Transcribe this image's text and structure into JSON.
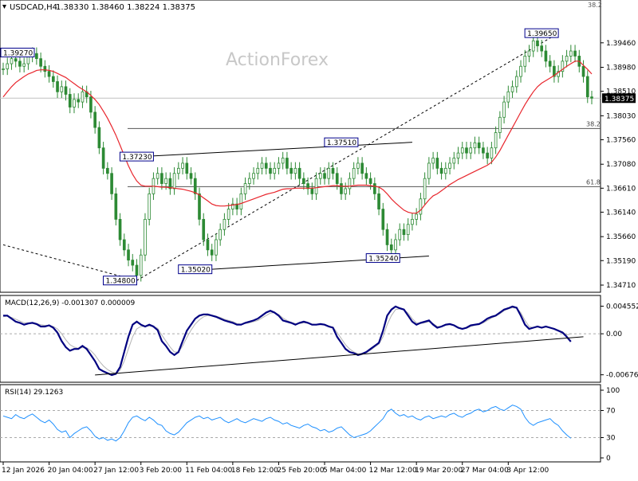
{
  "header": {
    "symbol": "USDCAD,H4",
    "ohlc": "1.38330 1.38460 1.38224 1.38375"
  },
  "watermark": "ActionForex",
  "colors": {
    "candle": "#2d8a34",
    "ma": "#e8262d",
    "macd": "#000080",
    "signal": "#b4b4b4",
    "rsi": "#1e90ff",
    "label_border": "#00008b",
    "level": "#555555",
    "last_price_bg": "#000000"
  },
  "chart_data": [
    {
      "type": "candlestick",
      "title": "USDCAD,H4",
      "yticks": [
        "1.39460",
        "1.38980",
        "1.38510",
        "1.38030",
        "1.37560",
        "1.37080",
        "1.36610",
        "1.36140",
        "1.35660",
        "1.35190",
        "1.34710"
      ],
      "ylim": [
        1.3471,
        1.4005
      ],
      "top_fib_label": "38.2",
      "last_price": "1.38375",
      "key_labels": [
        {
          "id": "label-1.39270",
          "text": "1.39270",
          "x": 7,
          "y": 1.3927
        },
        {
          "id": "label-1.37230",
          "text": "1.37230",
          "x": 36,
          "y": 1.3723
        },
        {
          "id": "label-1.34800",
          "text": "1.34800",
          "x": 32,
          "y": 1.348
        },
        {
          "id": "label-1.35020",
          "text": "1.35020",
          "x": 50,
          "y": 1.3502
        },
        {
          "id": "label-1.37510",
          "text": "1.37510",
          "x": 85,
          "y": 1.3751
        },
        {
          "id": "label-1.35240",
          "text": "1.35240",
          "x": 95,
          "y": 1.3524
        },
        {
          "id": "label-1.39650",
          "text": "1.39650",
          "x": 133,
          "y": 1.3965
        }
      ],
      "fib_levels": [
        {
          "label": "38.2",
          "value": 1.3778
        },
        {
          "label": "61.8",
          "value": 1.3664
        }
      ],
      "trend_lines": [
        {
          "name": "upper-channel",
          "from": [
            33,
            1.3723
          ],
          "to": [
            98,
            1.3751
          ],
          "style": "solid"
        },
        {
          "name": "lower-channel",
          "from": [
            50,
            1.3502
          ],
          "to": [
            102,
            1.3528
          ],
          "style": "solid"
        },
        {
          "name": "dotted-rise",
          "from": [
            32,
            1.348
          ],
          "to": [
            133,
            1.3965
          ],
          "style": "dotted"
        },
        {
          "name": "dotted-fall",
          "from": [
            0,
            1.355
          ],
          "to": [
            32,
            1.348
          ],
          "style": "dotted"
        }
      ],
      "close_series": [
        1.3895,
        1.3905,
        1.3915,
        1.391,
        1.39,
        1.3905,
        1.392,
        1.3925,
        1.3915,
        1.39,
        1.389,
        1.388,
        1.387,
        1.385,
        1.386,
        1.3845,
        1.382,
        1.3835,
        1.383,
        1.385,
        1.384,
        1.381,
        1.378,
        1.374,
        1.37,
        1.369,
        1.365,
        1.36,
        1.356,
        1.354,
        1.352,
        1.351,
        1.349,
        1.353,
        1.36,
        1.365,
        1.368,
        1.369,
        1.367,
        1.368,
        1.366,
        1.369,
        1.37,
        1.371,
        1.369,
        1.368,
        1.365,
        1.36,
        1.356,
        1.354,
        1.353,
        1.356,
        1.358,
        1.36,
        1.362,
        1.363,
        1.362,
        1.365,
        1.367,
        1.368,
        1.369,
        1.37,
        1.371,
        1.37,
        1.369,
        1.37,
        1.371,
        1.372,
        1.37,
        1.369,
        1.37,
        1.368,
        1.367,
        1.366,
        1.365,
        1.368,
        1.369,
        1.368,
        1.37,
        1.369,
        1.367,
        1.365,
        1.366,
        1.368,
        1.37,
        1.371,
        1.369,
        1.368,
        1.367,
        1.365,
        1.362,
        1.358,
        1.355,
        1.354,
        1.356,
        1.358,
        1.357,
        1.359,
        1.36,
        1.361,
        1.364,
        1.368,
        1.371,
        1.372,
        1.37,
        1.369,
        1.37,
        1.371,
        1.372,
        1.373,
        1.374,
        1.373,
        1.374,
        1.375,
        1.374,
        1.373,
        1.372,
        1.374,
        1.377,
        1.38,
        1.383,
        1.385,
        1.386,
        1.388,
        1.39,
        1.392,
        1.393,
        1.395,
        1.394,
        1.393,
        1.391,
        1.39,
        1.388,
        1.389,
        1.391,
        1.392,
        1.393,
        1.392,
        1.39,
        1.388,
        1.384,
        1.38375
      ],
      "ma_series": [
        1.384,
        1.385,
        1.386,
        1.3868,
        1.3874,
        1.388,
        1.3885,
        1.3888,
        1.3892,
        1.3893,
        1.3893,
        1.3892,
        1.389,
        1.3886,
        1.3882,
        1.3878,
        1.3872,
        1.3866,
        1.386,
        1.3855,
        1.385,
        1.3843,
        1.3835,
        1.3825,
        1.3812,
        1.3798,
        1.3782,
        1.3765,
        1.3745,
        1.3725,
        1.3705,
        1.3688,
        1.3675,
        1.3667,
        1.3665,
        1.3665,
        1.3665,
        1.3664,
        1.3663,
        1.3663,
        1.3662,
        1.3661,
        1.366,
        1.3659,
        1.3657,
        1.3655,
        1.3652,
        1.3648,
        1.3642,
        1.3636,
        1.363,
        1.3627,
        1.3626,
        1.3626,
        1.3627,
        1.3628,
        1.3629,
        1.3631,
        1.3634,
        1.3637,
        1.364,
        1.3643,
        1.3646,
        1.3649,
        1.3651,
        1.3653,
        1.3656,
        1.3659,
        1.366,
        1.366,
        1.3661,
        1.3661,
        1.3661,
        1.3661,
        1.3661,
        1.3662,
        1.3663,
        1.3664,
        1.3665,
        1.3666,
        1.3666,
        1.3665,
        1.3665,
        1.3665,
        1.3666,
        1.3667,
        1.3667,
        1.3667,
        1.3666,
        1.3665,
        1.3663,
        1.3658,
        1.365,
        1.364,
        1.3632,
        1.3625,
        1.3618,
        1.3614,
        1.3612,
        1.3612,
        1.3618,
        1.3628,
        1.3638,
        1.3646,
        1.365,
        1.3656,
        1.3662,
        1.3668,
        1.3673,
        1.3678,
        1.3682,
        1.3686,
        1.369,
        1.3694,
        1.3698,
        1.3702,
        1.3706,
        1.3712,
        1.3722,
        1.3735,
        1.375,
        1.3765,
        1.378,
        1.3795,
        1.381,
        1.3825,
        1.3838,
        1.385,
        1.386,
        1.3867,
        1.3872,
        1.3877,
        1.3882,
        1.3888,
        1.3894,
        1.39,
        1.3905,
        1.391,
        1.391,
        1.3902,
        1.3894,
        1.3885
      ]
    },
    {
      "type": "line",
      "title": "MACD(12,26,9) -0.001307 0.000009",
      "yticks": [
        "0.004552",
        "0.00",
        "-0.006764"
      ],
      "ylim": [
        -0.0076,
        0.0054
      ],
      "series": [
        {
          "name": "MACD",
          "values": [
            0.003,
            0.003,
            0.0025,
            0.002,
            0.0018,
            0.0015,
            0.0017,
            0.0018,
            0.0016,
            0.0012,
            0.0012,
            0.0014,
            0.001,
            0.0002,
            -0.0012,
            -0.0022,
            -0.0028,
            -0.0025,
            -0.0025,
            -0.002,
            -0.0025,
            -0.0035,
            -0.0045,
            -0.0058,
            -0.0062,
            -0.0065,
            -0.0068,
            -0.0066,
            -0.0055,
            -0.003,
            -0.0005,
            0.0015,
            0.002,
            0.0015,
            0.0012,
            0.0015,
            0.0012,
            0.0006,
            -0.0012,
            -0.002,
            -0.003,
            -0.0035,
            -0.003,
            -0.0012,
            0.0005,
            0.0015,
            0.0025,
            0.003,
            0.0032,
            0.0032,
            0.003,
            0.0028,
            0.0025,
            0.0022,
            0.002,
            0.0018,
            0.0015,
            0.0015,
            0.0018,
            0.002,
            0.0022,
            0.0025,
            0.003,
            0.0035,
            0.0038,
            0.0035,
            0.003,
            0.0022,
            0.002,
            0.0018,
            0.0015,
            0.0018,
            0.002,
            0.0018,
            0.0015,
            0.0015,
            0.0016,
            0.0015,
            0.0012,
            0.001,
            -0.0005,
            -0.0015,
            -0.0025,
            -0.003,
            -0.0032,
            -0.0035,
            -0.0033,
            -0.003,
            -0.0025,
            -0.002,
            -0.0015,
            0.0005,
            0.003,
            0.004,
            0.0045,
            0.0042,
            0.004,
            0.003,
            0.002,
            0.0015,
            0.0018,
            0.002,
            0.0022,
            0.0015,
            0.001,
            0.0012,
            0.0015,
            0.0016,
            0.0014,
            0.001,
            0.0008,
            0.001,
            0.0014,
            0.0015,
            0.0016,
            0.002,
            0.0025,
            0.0028,
            0.003,
            0.0035,
            0.004,
            0.0042,
            0.0045,
            0.0043,
            0.003,
            0.0015,
            0.0008,
            0.001,
            0.0012,
            0.001,
            0.0012,
            0.001,
            0.0008,
            0.0005,
            0.0002,
            -0.0005,
            -0.0013
          ]
        },
        {
          "name": "Signal",
          "values": [
            0.0028,
            0.0029,
            0.0027,
            0.0024,
            0.0021,
            0.0018,
            0.0018,
            0.0018,
            0.0017,
            0.0015,
            0.0014,
            0.0014,
            0.0012,
            0.0008,
            0.0,
            -0.001,
            -0.0018,
            -0.0022,
            -0.0024,
            -0.0023,
            -0.0023,
            -0.0028,
            -0.0035,
            -0.0045,
            -0.0053,
            -0.0059,
            -0.0063,
            -0.0065,
            -0.006,
            -0.0045,
            -0.0025,
            -0.0005,
            0.0008,
            0.0012,
            0.0012,
            0.0013,
            0.0012,
            0.0009,
            -0.0002,
            -0.0012,
            -0.0022,
            -0.003,
            -0.003,
            -0.002,
            -0.0006,
            0.0006,
            0.0016,
            0.0023,
            0.0028,
            0.003,
            0.003,
            0.0029,
            0.0027,
            0.0024,
            0.0022,
            0.002,
            0.0017,
            0.0016,
            0.0017,
            0.0018,
            0.002,
            0.0022,
            0.0026,
            0.003,
            0.0034,
            0.0035,
            0.0032,
            0.0026,
            0.0022,
            0.0019,
            0.0017,
            0.0017,
            0.0018,
            0.0018,
            0.0016,
            0.0015,
            0.0015,
            0.0015,
            0.0013,
            0.0011,
            0.0002,
            -0.0008,
            -0.0018,
            -0.0025,
            -0.003,
            -0.0033,
            -0.0033,
            -0.0031,
            -0.0027,
            -0.0022,
            -0.0017,
            -0.0005,
            0.0015,
            0.003,
            0.004,
            0.0041,
            0.004,
            0.0034,
            0.0025,
            0.0018,
            0.0017,
            0.0018,
            0.002,
            0.0017,
            0.0012,
            0.0012,
            0.0014,
            0.0015,
            0.0014,
            0.0011,
            0.0009,
            0.0009,
            0.0012,
            0.0014,
            0.0015,
            0.0018,
            0.0022,
            0.0026,
            0.0029,
            0.0033,
            0.0038,
            0.0041,
            0.0043,
            0.0042,
            0.0035,
            0.0022,
            0.0012,
            0.001,
            0.0011,
            0.001,
            0.0011,
            0.001,
            0.0009,
            0.0006,
            0.0003,
            -0.0002,
            0.0
          ]
        }
      ],
      "trend_line": {
        "from": [
          22,
          -0.0068
        ],
        "to": [
          139,
          -0.0005
        ]
      }
    },
    {
      "type": "line",
      "title": "RSI(14) 29.1263",
      "yticks": [
        "100",
        "70",
        "30",
        "0"
      ],
      "ylim": [
        0,
        100
      ],
      "series": [
        {
          "name": "RSI",
          "values": [
            62,
            60,
            58,
            64,
            60,
            58,
            62,
            65,
            60,
            55,
            52,
            56,
            50,
            42,
            38,
            40,
            30,
            36,
            40,
            44,
            46,
            40,
            32,
            28,
            30,
            26,
            28,
            25,
            30,
            40,
            52,
            60,
            62,
            58,
            55,
            60,
            56,
            50,
            48,
            40,
            36,
            34,
            38,
            45,
            52,
            56,
            60,
            62,
            58,
            60,
            56,
            58,
            60,
            55,
            52,
            55,
            58,
            54,
            52,
            55,
            58,
            56,
            54,
            58,
            60,
            56,
            54,
            50,
            52,
            48,
            46,
            44,
            48,
            50,
            46,
            44,
            40,
            42,
            38,
            40,
            44,
            46,
            40,
            34,
            30,
            32,
            34,
            36,
            40,
            46,
            52,
            58,
            68,
            72,
            66,
            62,
            64,
            60,
            62,
            58,
            56,
            60,
            62,
            58,
            60,
            62,
            60,
            64,
            66,
            62,
            60,
            64,
            66,
            70,
            72,
            68,
            70,
            74,
            76,
            72,
            70,
            74,
            78,
            76,
            72,
            60,
            52,
            48,
            52,
            54,
            56,
            58,
            52,
            48,
            40,
            34,
            29
          ]
        }
      ],
      "levels": [
        70,
        30
      ]
    }
  ],
  "x_axis": {
    "labels": [
      "12 Jan 2026",
      "20 Jan 04:00",
      "27 Jan 12:00",
      "3 Feb 20:00",
      "11 Feb 04:00",
      "18 Feb 12:00",
      "25 Feb 20:00",
      "5 Mar 04:00",
      "12 Mar 12:00",
      "19 Mar 20:00",
      "27 Mar 04:00",
      "3 Apr 12:00"
    ],
    "label_index": [
      0,
      11,
      22,
      33,
      44,
      55,
      66,
      77,
      88,
      99,
      110,
      121
    ]
  }
}
